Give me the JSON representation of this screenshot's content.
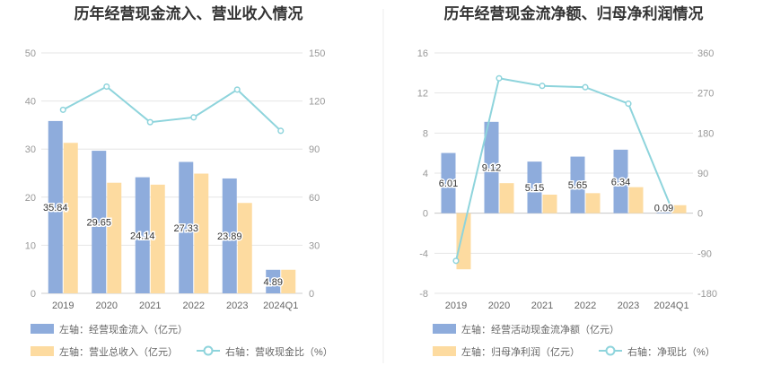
{
  "chart_data": [
    {
      "type": "bar",
      "title": "历年经营现金流入、营业收入情况",
      "categories": [
        "2019",
        "2020",
        "2021",
        "2022",
        "2023",
        "2024Q1"
      ],
      "left_axis": {
        "ylim": [
          0,
          50
        ],
        "ticks": [
          "0",
          "10",
          "20",
          "30",
          "40",
          "50"
        ]
      },
      "right_axis": {
        "ylim": [
          0,
          150
        ],
        "ticks": [
          "0",
          "30",
          "60",
          "90",
          "120",
          "150"
        ]
      },
      "grid": true,
      "legend_position": "bottom",
      "series": [
        {
          "name": "左轴：经营现金流入（亿元）",
          "type": "bar",
          "axis": "left",
          "color": "#8eacdc",
          "values": [
            35.84,
            29.65,
            24.14,
            27.33,
            23.89,
            4.89
          ],
          "labels": [
            "35.84",
            "29.65",
            "24.14",
            "27.33",
            "23.89",
            "4.89"
          ]
        },
        {
          "name": "左轴：营业总收入（亿元）",
          "type": "bar",
          "axis": "left",
          "color": "#fddba0",
          "values": [
            31.3,
            23.0,
            22.6,
            24.9,
            18.8,
            4.9
          ]
        },
        {
          "name": "右轴：营收现金比（%）",
          "type": "line",
          "axis": "right",
          "color": "#8ed4dc",
          "values": [
            114.5,
            129.0,
            106.8,
            109.8,
            127.1,
            101.4
          ]
        }
      ]
    },
    {
      "type": "bar",
      "title": "历年经营现金流净额、归母净利润情况",
      "categories": [
        "2019",
        "2020",
        "2021",
        "2022",
        "2023",
        "2024Q1"
      ],
      "left_axis": {
        "ylim": [
          -8,
          16
        ],
        "ticks": [
          "-8",
          "-4",
          "0",
          "4",
          "8",
          "12",
          "16"
        ]
      },
      "right_axis": {
        "ylim": [
          -180,
          360
        ],
        "ticks": [
          "-180",
          "-90",
          "0",
          "90",
          "180",
          "270",
          "360"
        ]
      },
      "grid": true,
      "legend_position": "bottom",
      "series": [
        {
          "name": "左轴：经营活动现金流净额（亿元）",
          "type": "bar",
          "axis": "left",
          "color": "#8eacdc",
          "values": [
            6.01,
            9.12,
            5.15,
            5.65,
            6.34,
            0.09
          ],
          "labels": [
            "6.01",
            "9.12",
            "5.15",
            "5.65",
            "6.34",
            "0.09"
          ]
        },
        {
          "name": "左轴：归母净利润（亿元）",
          "type": "bar",
          "axis": "left",
          "color": "#fddba0",
          "values": [
            -5.6,
            3.0,
            1.85,
            2.0,
            2.6,
            0.8
          ]
        },
        {
          "name": "右轴：净现比（%）",
          "type": "line",
          "axis": "right",
          "color": "#8ed4dc",
          "values": [
            -107,
            303,
            286,
            283,
            246,
            11
          ]
        }
      ]
    }
  ]
}
